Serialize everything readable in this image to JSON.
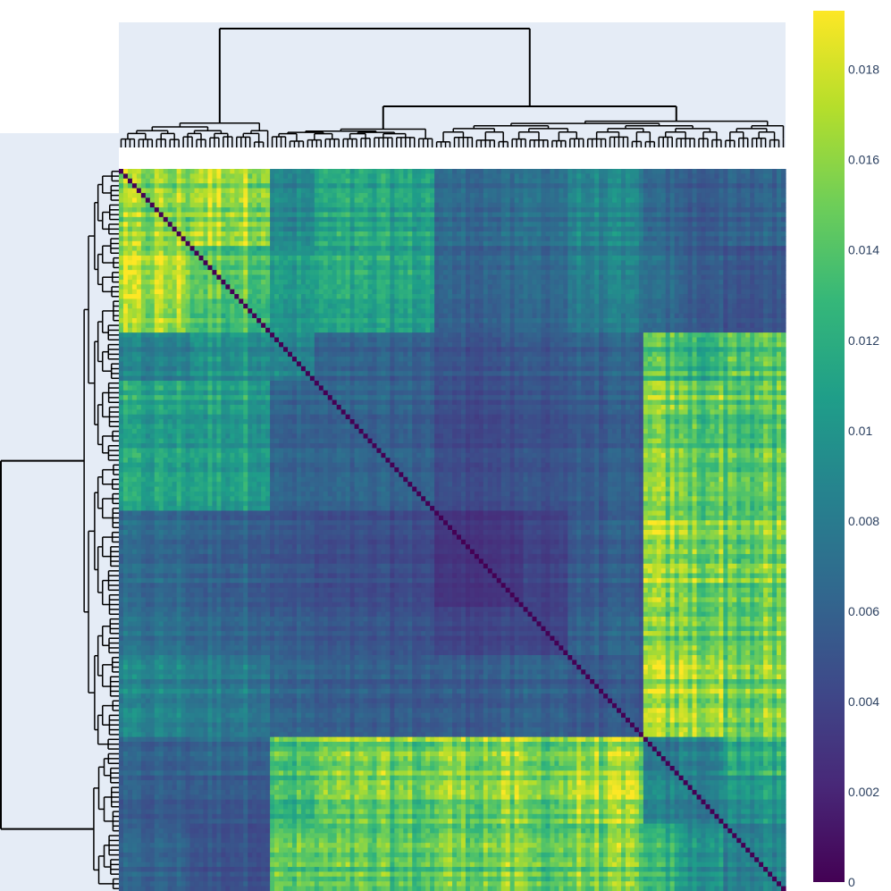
{
  "chart_data": {
    "type": "heatmap",
    "title": "",
    "xlabel": "",
    "ylabel": "",
    "dimensions": [
      150,
      150
    ],
    "colorscale": {
      "name": "Viridis",
      "stops": [
        "#440154",
        "#482878",
        "#3e4989",
        "#31688e",
        "#26828e",
        "#1f9e89",
        "#35b779",
        "#6ece58",
        "#b5de2b",
        "#fde725"
      ]
    },
    "color_range": [
      0,
      0.0193
    ],
    "colorbar": {
      "ticks": [
        0,
        0.002,
        0.004,
        0.006,
        0.008,
        0.01,
        0.012,
        0.014,
        0.016,
        0.018
      ],
      "tick_labels": [
        "0",
        "0.002",
        "0.004",
        "0.006",
        "0.008",
        "0.01",
        "0.012",
        "0.014",
        "0.016",
        "0.018"
      ]
    },
    "clusters": [
      {
        "size": 16,
        "within": 0.0155
      },
      {
        "size": 18,
        "within": 0.014
      },
      {
        "size": 10,
        "within": 0.0085
      },
      {
        "size": 27,
        "within": 0.006
      },
      {
        "size": 20,
        "within": 0.003
      },
      {
        "size": 10,
        "within": 0.004
      },
      {
        "size": 17,
        "within": 0.0052
      },
      {
        "size": 8,
        "within": 0.0075
      },
      {
        "size": 10,
        "within": 0.008
      },
      {
        "size": 14,
        "within": 0.0085
      }
    ],
    "cluster_between_matrix": [
      [
        0.0155,
        0.0165,
        0.0085,
        0.011,
        0.0065,
        0.007,
        0.0085,
        0.006,
        0.0055,
        0.006
      ],
      [
        0.0165,
        0.014,
        0.01,
        0.011,
        0.006,
        0.0065,
        0.008,
        0.0065,
        0.0055,
        0.005
      ],
      [
        0.0085,
        0.01,
        0.0085,
        0.006,
        0.005,
        0.0055,
        0.006,
        0.0135,
        0.0125,
        0.014
      ],
      [
        0.011,
        0.011,
        0.006,
        0.006,
        0.0045,
        0.005,
        0.0055,
        0.015,
        0.0145,
        0.014
      ],
      [
        0.0065,
        0.006,
        0.005,
        0.0045,
        0.003,
        0.004,
        0.0055,
        0.016,
        0.0155,
        0.015
      ],
      [
        0.007,
        0.0065,
        0.0055,
        0.005,
        0.004,
        0.004,
        0.006,
        0.015,
        0.015,
        0.0145
      ],
      [
        0.0085,
        0.008,
        0.006,
        0.0055,
        0.0055,
        0.006,
        0.0052,
        0.016,
        0.0165,
        0.015
      ],
      [
        0.006,
        0.0065,
        0.0135,
        0.015,
        0.016,
        0.015,
        0.016,
        0.0075,
        0.0085,
        0.012
      ],
      [
        0.0055,
        0.0055,
        0.0125,
        0.0145,
        0.0155,
        0.015,
        0.0165,
        0.0085,
        0.008,
        0.01
      ],
      [
        0.006,
        0.005,
        0.014,
        0.014,
        0.015,
        0.0145,
        0.015,
        0.012,
        0.01,
        0.0085
      ]
    ],
    "diagonal_value": 0,
    "column_dendrogram": {
      "top_split": [
        [
          0,
          34
        ],
        [
          34,
          150
        ]
      ],
      "right_split": [
        [
          34,
          71
        ],
        [
          71,
          150
        ]
      ]
    },
    "row_dendrogram": {
      "top_split": [
        [
          0,
          121
        ],
        [
          121,
          150
        ]
      ]
    },
    "dendrogram_color": "#000000",
    "panel_background": "#e5ecf6"
  }
}
